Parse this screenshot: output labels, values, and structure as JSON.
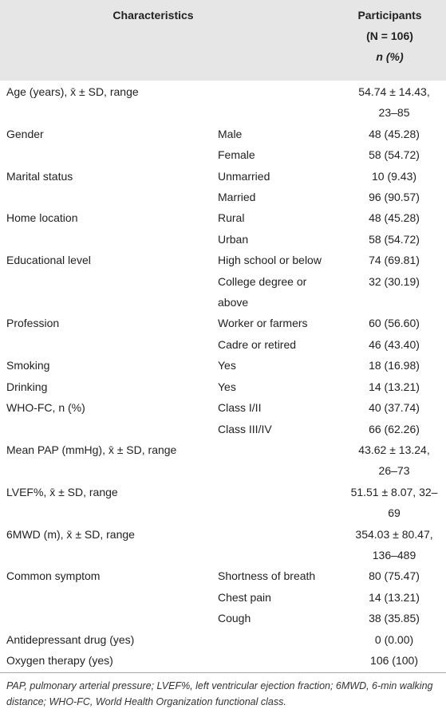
{
  "table": {
    "header": {
      "characteristics": "Characteristics",
      "participants": [
        "Participants",
        "(N = 106)",
        "n (%)"
      ]
    },
    "rows": [
      {
        "label": "Age (years), x̄ ± SD, range",
        "value": "54.74 ± 14.43, 23–85"
      },
      {
        "label": "Gender",
        "sub": "Male",
        "value": "48 (45.28)"
      },
      {
        "sub": "Female",
        "value": "58 (54.72)"
      },
      {
        "label": "Marital status",
        "sub": "Unmarried",
        "value": "10 (9.43)"
      },
      {
        "sub": "Married",
        "value": "96 (90.57)"
      },
      {
        "label": "Home location",
        "sub": "Rural",
        "value": "48 (45.28)"
      },
      {
        "sub": "Urban",
        "value": "58 (54.72)"
      },
      {
        "label": "Educational level",
        "sub": "High school or below",
        "value": "74 (69.81)"
      },
      {
        "sub": "College degree or above",
        "value": "32 (30.19)"
      },
      {
        "label": "Profession",
        "sub": "Worker or farmers",
        "value": "60 (56.60)"
      },
      {
        "sub": "Cadre or retired",
        "value": "46 (43.40)"
      },
      {
        "label": "Smoking",
        "sub": "Yes",
        "value": "18 (16.98)"
      },
      {
        "label": "Drinking",
        "sub": "Yes",
        "value": "14 (13.21)"
      },
      {
        "label": "WHO-FC, n (%)",
        "sub": "Class I/II",
        "value": "40 (37.74)"
      },
      {
        "sub": "Class III/IV",
        "value": "66 (62.26)"
      },
      {
        "label": "Mean PAP (mmHg), x̄ ± SD, range",
        "value": "43.62 ± 13.24, 26–73"
      },
      {
        "label": "LVEF%, x̄ ± SD, range",
        "value": "51.51 ± 8.07, 32–69"
      },
      {
        "label": "6MWD (m), x̄ ± SD, range",
        "value": "354.03 ± 80.47, 136–489"
      },
      {
        "label": "Common symptom",
        "sub": "Shortness of breath",
        "value": "80 (75.47)"
      },
      {
        "sub": "Chest pain",
        "value": "14 (13.21)"
      },
      {
        "sub": "Cough",
        "value": "38 (35.85)"
      },
      {
        "label": "Antidepressant drug (yes)",
        "value": "0 (0.00)"
      },
      {
        "label": "Oxygen therapy (yes)",
        "value": "106 (100)"
      }
    ],
    "footnote": "PAP, pulmonary arterial pressure; LVEF%, left ventricular ejection fraction; 6MWD, 6-min walking distance; WHO-FC, World Health Organization functional class."
  }
}
